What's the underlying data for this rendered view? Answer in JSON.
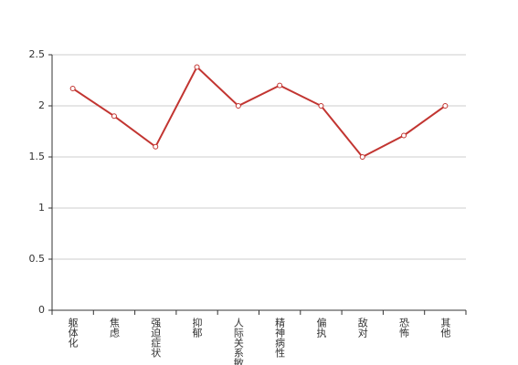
{
  "chart_data": {
    "type": "line",
    "categories": [
      "躯体化",
      "焦虑",
      "强迫症状",
      "抑郁",
      "人际关系敏感",
      "精神病性",
      "偏执",
      "敌对",
      "恐怖",
      "其他"
    ],
    "series": [
      {
        "color": "#c23531",
        "values": [
          2.17,
          1.9,
          1.6,
          2.38,
          2.0,
          2.2,
          2.0,
          1.5,
          1.71,
          2.0
        ]
      }
    ],
    "ylim": [
      0,
      2.5
    ],
    "yticks": [
      0,
      0.5,
      1,
      1.5,
      2,
      2.5
    ],
    "grid": true
  }
}
